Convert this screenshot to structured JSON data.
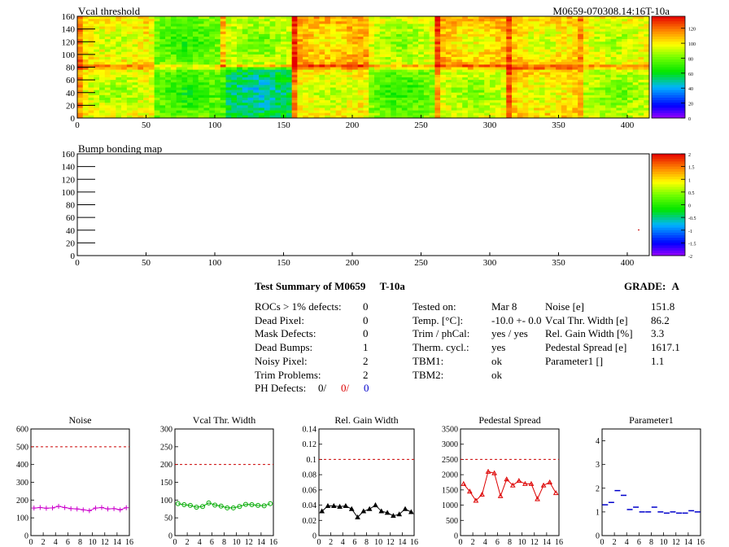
{
  "top_map": {
    "title": "Vcal threshold",
    "module_label": "M0659-070308.14:16T-10a",
    "y_ticks": [
      0,
      20,
      40,
      60,
      80,
      100,
      120,
      140,
      160
    ],
    "x_ticks": [
      0,
      50,
      100,
      150,
      200,
      250,
      300,
      350,
      400
    ],
    "palette_ticks": [
      "0",
      "20",
      "40",
      "60",
      "80",
      "100",
      "120"
    ]
  },
  "bump_map": {
    "title": "Bump bonding map",
    "y_ticks": [
      0,
      20,
      40,
      60,
      80,
      100,
      120,
      140,
      160
    ],
    "x_ticks": [
      0,
      50,
      100,
      150,
      200,
      250,
      300,
      350,
      400
    ],
    "palette_ticks": [
      "2",
      "1.5",
      "1",
      "0.5",
      "0",
      "-0.5",
      "-1",
      "-1.5",
      "-2"
    ]
  },
  "summary": {
    "title": "Test Summary of M0659",
    "temp_label": "T-10a",
    "grade_label": "GRADE:",
    "grade": "A",
    "left_rows": [
      {
        "label": "ROCs > 1% defects:",
        "value": "0"
      },
      {
        "label": "Dead Pixel:",
        "value": "0"
      },
      {
        "label": "Mask Defects:",
        "value": "0"
      },
      {
        "label": "Dead Bumps:",
        "value": "1"
      },
      {
        "label": "Noisy Pixel:",
        "value": "2"
      },
      {
        "label": "Trim Problems:",
        "value": "2"
      }
    ],
    "ph_defects": {
      "label": "PH Defects:",
      "v1": "0/",
      "v2": "0/",
      "v3": "0"
    },
    "mid_rows": [
      {
        "label": "Tested on:",
        "value": "Mar 8"
      },
      {
        "label": "Temp. [°C]:",
        "value": "-10.0 +- 0.0"
      },
      {
        "label": "Trim / phCal:",
        "value": "yes / yes"
      },
      {
        "label": "Therm. cycl.:",
        "value": "yes"
      },
      {
        "label": "TBM1:",
        "value": "ok"
      },
      {
        "label": "TBM2:",
        "value": "ok"
      }
    ],
    "right_rows": [
      {
        "label": "Noise [e]",
        "value": "151.8"
      },
      {
        "label": "Vcal Thr. Width [e]",
        "value": "86.2"
      },
      {
        "label": "Rel. Gain Width [%]",
        "value": "3.3"
      },
      {
        "label": "Pedestal Spread [e]",
        "value": "1617.1"
      },
      {
        "label": "Parameter1 []",
        "value": "1.1"
      }
    ]
  },
  "chart_data": [
    {
      "type": "line",
      "title": "Noise",
      "color": "#cc00cc",
      "marker": "plus",
      "ylim": [
        0,
        600
      ],
      "y_ticks": [
        "0",
        "100",
        "200",
        "300",
        "400",
        "500",
        "600"
      ],
      "x_ticks": [
        "0",
        "2",
        "4",
        "6",
        "8",
        "10",
        "12",
        "14",
        "16"
      ],
      "limit": 500,
      "x": [
        0,
        1,
        2,
        3,
        4,
        5,
        6,
        7,
        8,
        9,
        10,
        11,
        12,
        13,
        14,
        15
      ],
      "values": [
        155,
        158,
        154,
        156,
        165,
        158,
        152,
        150,
        145,
        140,
        155,
        158,
        150,
        152,
        145,
        157
      ]
    },
    {
      "type": "line",
      "title": "Vcal Thr. Width",
      "color": "#00aa00",
      "marker": "circle",
      "ylim": [
        0,
        300
      ],
      "y_ticks": [
        "0",
        "50",
        "100",
        "150",
        "200",
        "250",
        "300"
      ],
      "x_ticks": [
        "0",
        "2",
        "4",
        "6",
        "8",
        "10",
        "12",
        "14",
        "16"
      ],
      "limit": 200,
      "x": [
        0,
        1,
        2,
        3,
        4,
        5,
        6,
        7,
        8,
        9,
        10,
        11,
        12,
        13,
        14,
        15
      ],
      "values": [
        90,
        87,
        85,
        80,
        82,
        92,
        86,
        83,
        78,
        78,
        82,
        88,
        87,
        85,
        84,
        90
      ]
    },
    {
      "type": "line",
      "title": "Rel. Gain Width",
      "color": "#000000",
      "marker": "triangle",
      "ylim": [
        0,
        0.14
      ],
      "y_ticks": [
        "0",
        "0.02",
        "0.04",
        "0.06",
        "0.08",
        "0.1",
        "0.12",
        "0.14"
      ],
      "x_ticks": [
        "0",
        "2",
        "4",
        "6",
        "8",
        "10",
        "12",
        "14",
        "16"
      ],
      "limit": 0.1,
      "x": [
        0,
        1,
        2,
        3,
        4,
        5,
        6,
        7,
        8,
        9,
        10,
        11,
        12,
        13,
        14,
        15
      ],
      "values": [
        0.032,
        0.039,
        0.039,
        0.038,
        0.039,
        0.035,
        0.024,
        0.032,
        0.035,
        0.04,
        0.032,
        0.03,
        0.026,
        0.028,
        0.035,
        0.031
      ]
    },
    {
      "type": "line",
      "title": "Pedestal Spread",
      "color": "#dd0000",
      "marker": "triangle",
      "ylim": [
        0,
        3500
      ],
      "y_ticks": [
        "0",
        "500",
        "1000",
        "1500",
        "2000",
        "2500",
        "3000",
        "3500"
      ],
      "x_ticks": [
        "0",
        "2",
        "4",
        "6",
        "8",
        "10",
        "12",
        "14",
        "16"
      ],
      "limit": 2500,
      "x": [
        0,
        1,
        2,
        3,
        4,
        5,
        6,
        7,
        8,
        9,
        10,
        11,
        12,
        13,
        14,
        15
      ],
      "values": [
        1700,
        1450,
        1150,
        1350,
        2100,
        2050,
        1300,
        1850,
        1650,
        1800,
        1700,
        1700,
        1200,
        1650,
        1750,
        1400
      ]
    },
    {
      "type": "scatter",
      "title": "Parameter1",
      "color": "#0000cc",
      "marker": "hbar",
      "ylim": [
        0,
        4.5
      ],
      "y_ticks": [
        "0",
        "1",
        "2",
        "3",
        "4"
      ],
      "x_ticks": [
        "0",
        "2",
        "4",
        "6",
        "8",
        "10",
        "12",
        "14",
        "16"
      ],
      "x": [
        0,
        1,
        2,
        3,
        4,
        5,
        6,
        7,
        8,
        9,
        10,
        11,
        12,
        13,
        14,
        15
      ],
      "values": [
        1.3,
        1.4,
        1.9,
        1.7,
        1.1,
        1.2,
        1.0,
        1.0,
        1.2,
        1.0,
        0.95,
        1.0,
        0.95,
        0.95,
        1.05,
        1.0
      ]
    }
  ]
}
